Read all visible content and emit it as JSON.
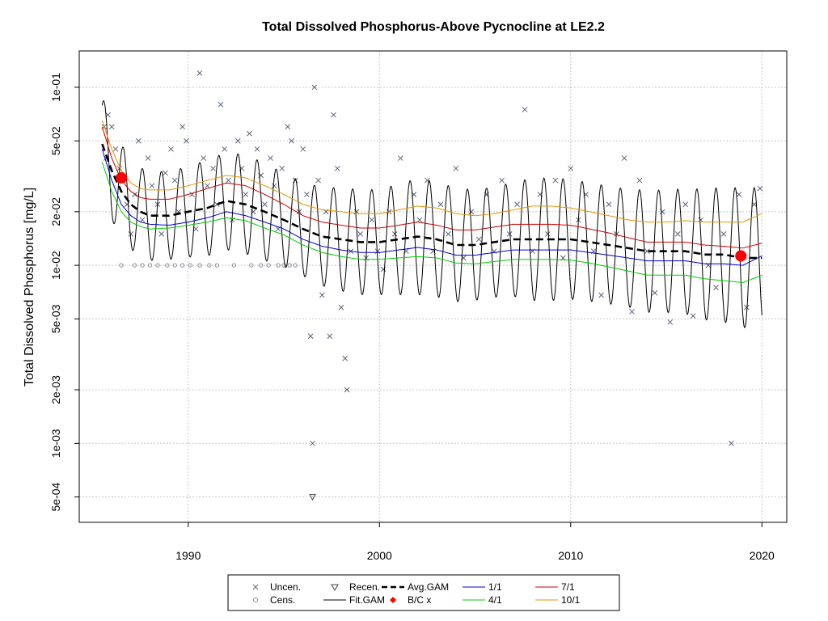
{
  "chart_data": {
    "type": "line",
    "title": "Total Dissolved Phosphorus-Above Pycnocline at LE2.2",
    "ylabel": "Total Dissolved Phosphorus [mg/L]",
    "xlabel": "",
    "y_scale": "log",
    "xlim": [
      1984.3,
      2021.3
    ],
    "ylim": [
      0.00036,
      0.16
    ],
    "x_ticks": [
      1990,
      2000,
      2010,
      2020
    ],
    "x_tick_labels": [
      "1990",
      "2000",
      "2010",
      "2020"
    ],
    "y_ticks": [
      0.0005,
      0.001,
      0.002,
      0.005,
      0.01,
      0.02,
      0.05,
      0.1
    ],
    "y_tick_labels": [
      "5e-04",
      "1e-03",
      "2e-03",
      "5e-03",
      "1e-02",
      "2e-02",
      "5e-02",
      "1e-01"
    ],
    "grid": true,
    "legend_position": "bottom",
    "legend": [
      {
        "label": "Uncen.",
        "symbol": "x"
      },
      {
        "label": "Recen.",
        "symbol": "triangle-down"
      },
      {
        "label": "Avg.GAM",
        "symbol": "dashed-line"
      },
      {
        "label": "1/1",
        "symbol": "line"
      },
      {
        "label": "7/1",
        "symbol": "line"
      },
      {
        "label": "Cens.",
        "symbol": "circle"
      },
      {
        "label": "Fit.GAM",
        "symbol": "line"
      },
      {
        "label": "B/C x",
        "symbol": "filled-diamond"
      },
      {
        "label": "4/1",
        "symbol": "line"
      },
      {
        "label": "10/1",
        "symbol": "line"
      }
    ],
    "colors": {
      "avg_gam": "#000000",
      "fit_gam": "#000000",
      "jan1": "#0000cd",
      "apr1": "#00cd00",
      "jul1": "#cd0000",
      "oct1": "#e69500",
      "bc_points": "#ff0000",
      "observations": "#5a6478"
    },
    "series": [
      {
        "name": "Avg.GAM",
        "x": [
          1985.5,
          1986,
          1986.5,
          1987,
          1987.5,
          1988,
          1989,
          1990,
          1991,
          1992,
          1993,
          1994,
          1995,
          1996,
          1997,
          1998,
          1999,
          2000,
          2001,
          2002,
          2003,
          2004,
          2005,
          2006,
          2007,
          2008,
          2009,
          2010,
          2011,
          2012,
          2013,
          2014,
          2015,
          2016,
          2017,
          2018,
          2019,
          2020
        ],
        "y": [
          0.048,
          0.034,
          0.026,
          0.022,
          0.02,
          0.019,
          0.019,
          0.02,
          0.021,
          0.023,
          0.022,
          0.02,
          0.018,
          0.016,
          0.0145,
          0.014,
          0.0135,
          0.0135,
          0.014,
          0.0145,
          0.014,
          0.013,
          0.013,
          0.0135,
          0.014,
          0.014,
          0.014,
          0.014,
          0.0135,
          0.013,
          0.0125,
          0.012,
          0.012,
          0.012,
          0.0115,
          0.0115,
          0.011,
          0.011
        ]
      },
      {
        "name": "1/1",
        "x": [
          1985.5,
          1986,
          1986.5,
          1987,
          1987.5,
          1988,
          1989,
          1990,
          1991,
          1992,
          1993,
          1994,
          1995,
          1996,
          1997,
          1998,
          1999,
          2000,
          2001,
          2002,
          2003,
          2004,
          2005,
          2006,
          2007,
          2008,
          2009,
          2010,
          2011,
          2012,
          2013,
          2014,
          2015,
          2016,
          2017,
          2018,
          2019,
          2020
        ],
        "y": [
          0.045,
          0.03,
          0.022,
          0.019,
          0.0175,
          0.017,
          0.0168,
          0.0175,
          0.0185,
          0.02,
          0.019,
          0.0175,
          0.016,
          0.014,
          0.0128,
          0.0122,
          0.0118,
          0.0118,
          0.0122,
          0.0126,
          0.0122,
          0.0114,
          0.0114,
          0.0118,
          0.0122,
          0.0122,
          0.0122,
          0.0122,
          0.0118,
          0.0114,
          0.011,
          0.0106,
          0.0106,
          0.0106,
          0.0102,
          0.0102,
          0.01,
          0.0113
        ]
      },
      {
        "name": "4/1",
        "x": [
          1985.5,
          1986,
          1986.5,
          1987,
          1987.5,
          1988,
          1989,
          1990,
          1991,
          1992,
          1993,
          1994,
          1995,
          1996,
          1997,
          1998,
          1999,
          2000,
          2001,
          2002,
          2003,
          2004,
          2005,
          2006,
          2007,
          2008,
          2009,
          2010,
          2011,
          2012,
          2013,
          2014,
          2015,
          2016,
          2017,
          2018,
          2019,
          2020
        ],
        "y": [
          0.038,
          0.026,
          0.02,
          0.0175,
          0.0165,
          0.016,
          0.0162,
          0.0168,
          0.0175,
          0.0185,
          0.0178,
          0.0162,
          0.0148,
          0.013,
          0.0118,
          0.0112,
          0.0108,
          0.0108,
          0.011,
          0.0112,
          0.011,
          0.0103,
          0.0102,
          0.0105,
          0.0108,
          0.0108,
          0.0108,
          0.0107,
          0.0103,
          0.0098,
          0.0093,
          0.0088,
          0.0088,
          0.0088,
          0.0084,
          0.0082,
          0.008,
          0.0088
        ]
      },
      {
        "name": "7/1",
        "x": [
          1985.5,
          1986,
          1986.5,
          1987,
          1987.5,
          1988,
          1989,
          1990,
          1991,
          1992,
          1993,
          1994,
          1995,
          1996,
          1997,
          1998,
          1999,
          2000,
          2001,
          2002,
          2003,
          2004,
          2005,
          2006,
          2007,
          2008,
          2009,
          2010,
          2011,
          2012,
          2013,
          2014,
          2015,
          2016,
          2017,
          2018,
          2019,
          2020
        ],
        "y": [
          0.06,
          0.04,
          0.03,
          0.026,
          0.024,
          0.0235,
          0.0235,
          0.025,
          0.027,
          0.029,
          0.028,
          0.025,
          0.022,
          0.019,
          0.0175,
          0.0168,
          0.0162,
          0.0162,
          0.0168,
          0.0175,
          0.0168,
          0.0158,
          0.0158,
          0.0164,
          0.017,
          0.017,
          0.017,
          0.0168,
          0.016,
          0.0152,
          0.0143,
          0.0135,
          0.0135,
          0.0135,
          0.013,
          0.0128,
          0.0125,
          0.0133
        ]
      },
      {
        "name": "10/1",
        "x": [
          1985.5,
          1986,
          1986.5,
          1987,
          1987.5,
          1988,
          1989,
          1990,
          1991,
          1992,
          1993,
          1994,
          1995,
          1996,
          1997,
          1998,
          1999,
          2000,
          2001,
          2002,
          2003,
          2004,
          2005,
          2006,
          2007,
          2008,
          2009,
          2010,
          2011,
          2012,
          2013,
          2014,
          2015,
          2016,
          2017,
          2018,
          2019,
          2020
        ],
        "y": [
          0.065,
          0.045,
          0.034,
          0.029,
          0.027,
          0.0265,
          0.0265,
          0.028,
          0.03,
          0.032,
          0.031,
          0.028,
          0.025,
          0.022,
          0.0205,
          0.02,
          0.0195,
          0.0195,
          0.0205,
          0.0215,
          0.021,
          0.0195,
          0.019,
          0.0195,
          0.0205,
          0.0215,
          0.0215,
          0.021,
          0.02,
          0.019,
          0.018,
          0.0175,
          0.0175,
          0.0178,
          0.0175,
          0.0175,
          0.0175,
          0.0195
        ]
      },
      {
        "name": "B/C x",
        "x": [
          1986.5,
          2018.9
        ],
        "y": [
          0.031,
          0.0113
        ]
      }
    ],
    "uncensored_points": [
      [
        1985.6,
        0.06
      ],
      [
        1985.8,
        0.07
      ],
      [
        1985.7,
        0.04
      ],
      [
        1986.0,
        0.06
      ],
      [
        1986.2,
        0.045
      ],
      [
        1986.4,
        0.035
      ],
      [
        1986.6,
        0.03
      ],
      [
        1986.8,
        0.022
      ],
      [
        1987.0,
        0.015
      ],
      [
        1987.2,
        0.025
      ],
      [
        1987.4,
        0.05
      ],
      [
        1987.6,
        0.018
      ],
      [
        1987.9,
        0.04
      ],
      [
        1988.1,
        0.028
      ],
      [
        1988.4,
        0.022
      ],
      [
        1988.6,
        0.015
      ],
      [
        1988.8,
        0.033
      ],
      [
        1989.1,
        0.045
      ],
      [
        1989.3,
        0.03
      ],
      [
        1989.5,
        0.02
      ],
      [
        1989.7,
        0.06
      ],
      [
        1989.9,
        0.05
      ],
      [
        1990.2,
        0.025
      ],
      [
        1990.4,
        0.016
      ],
      [
        1990.6,
        0.12
      ],
      [
        1990.8,
        0.04
      ],
      [
        1991.0,
        0.028
      ],
      [
        1991.3,
        0.035
      ],
      [
        1991.5,
        0.022
      ],
      [
        1991.7,
        0.08
      ],
      [
        1991.9,
        0.045
      ],
      [
        1992.1,
        0.03
      ],
      [
        1992.3,
        0.018
      ],
      [
        1992.6,
        0.05
      ],
      [
        1992.8,
        0.035
      ],
      [
        1993.0,
        0.025
      ],
      [
        1993.2,
        0.055
      ],
      [
        1993.4,
        0.02
      ],
      [
        1993.6,
        0.045
      ],
      [
        1993.8,
        0.032
      ],
      [
        1994.0,
        0.022
      ],
      [
        1994.3,
        0.04
      ],
      [
        1994.5,
        0.028
      ],
      [
        1994.7,
        0.016
      ],
      [
        1994.9,
        0.035
      ],
      [
        1995.2,
        0.06
      ],
      [
        1995.4,
        0.05
      ],
      [
        1995.6,
        0.03
      ],
      [
        1995.8,
        0.02
      ],
      [
        1996.0,
        0.045
      ],
      [
        1996.2,
        0.025
      ],
      [
        1996.4,
        0.004
      ],
      [
        1996.5,
        0.001
      ],
      [
        1996.6,
        0.1
      ],
      [
        1996.8,
        0.03
      ],
      [
        1997.0,
        0.0068
      ],
      [
        1997.2,
        0.02
      ],
      [
        1997.4,
        0.004
      ],
      [
        1997.6,
        0.07
      ],
      [
        1997.8,
        0.035
      ],
      [
        1998.0,
        0.0058
      ],
      [
        1998.2,
        0.003
      ],
      [
        1998.3,
        0.002
      ],
      [
        1998.5,
        0.012
      ],
      [
        1998.8,
        0.02
      ],
      [
        1999.0,
        0.015
      ],
      [
        1999.3,
        0.011
      ],
      [
        1999.6,
        0.018
      ],
      [
        1999.9,
        0.012
      ],
      [
        2000.2,
        0.0095
      ],
      [
        2000.5,
        0.02
      ],
      [
        2000.8,
        0.015
      ],
      [
        2001.1,
        0.04
      ],
      [
        2001.4,
        0.012
      ],
      [
        2001.8,
        0.025
      ],
      [
        2002.1,
        0.018
      ],
      [
        2002.5,
        0.03
      ],
      [
        2002.8,
        0.012
      ],
      [
        2003.2,
        0.022
      ],
      [
        2003.6,
        0.015
      ],
      [
        2004.0,
        0.035
      ],
      [
        2004.4,
        0.011
      ],
      [
        2004.8,
        0.02
      ],
      [
        2005.2,
        0.014
      ],
      [
        2005.6,
        0.025
      ],
      [
        2006.0,
        0.012
      ],
      [
        2006.4,
        0.03
      ],
      [
        2006.8,
        0.015
      ],
      [
        2007.2,
        0.022
      ],
      [
        2007.6,
        0.075
      ],
      [
        2008.0,
        0.012
      ],
      [
        2008.4,
        0.025
      ],
      [
        2008.8,
        0.015
      ],
      [
        2009.2,
        0.03
      ],
      [
        2009.6,
        0.011
      ],
      [
        2010.0,
        0.035
      ],
      [
        2010.4,
        0.018
      ],
      [
        2010.8,
        0.025
      ],
      [
        2011.2,
        0.012
      ],
      [
        2011.6,
        0.0068
      ],
      [
        2012.0,
        0.022
      ],
      [
        2012.4,
        0.015
      ],
      [
        2012.8,
        0.04
      ],
      [
        2013.2,
        0.0055
      ],
      [
        2013.6,
        0.03
      ],
      [
        2014.0,
        0.012
      ],
      [
        2014.4,
        0.007
      ],
      [
        2014.8,
        0.02
      ],
      [
        2015.2,
        0.0048
      ],
      [
        2015.6,
        0.015
      ],
      [
        2016.0,
        0.022
      ],
      [
        2016.4,
        0.0052
      ],
      [
        2016.8,
        0.018
      ],
      [
        2017.2,
        0.01
      ],
      [
        2017.6,
        0.0075
      ],
      [
        2018.0,
        0.015
      ],
      [
        2018.4,
        0.001
      ],
      [
        2018.8,
        0.025
      ],
      [
        2019.2,
        0.0058
      ],
      [
        2019.6,
        0.022
      ],
      [
        2019.9,
        0.027
      ]
    ],
    "censored_points": [
      [
        1986.5,
        0.01
      ],
      [
        1987.2,
        0.01
      ],
      [
        1987.6,
        0.01
      ],
      [
        1988.0,
        0.01
      ],
      [
        1988.4,
        0.01
      ],
      [
        1988.9,
        0.01
      ],
      [
        1989.3,
        0.01
      ],
      [
        1989.7,
        0.01
      ],
      [
        1990.1,
        0.01
      ],
      [
        1990.6,
        0.01
      ],
      [
        1991.1,
        0.01
      ],
      [
        1991.5,
        0.01
      ],
      [
        1992.4,
        0.01
      ],
      [
        1993.3,
        0.01
      ],
      [
        1993.8,
        0.01
      ],
      [
        1994.2,
        0.01
      ],
      [
        1994.7,
        0.01
      ],
      [
        1995.0,
        0.01
      ],
      [
        1995.3,
        0.01
      ],
      [
        1995.6,
        0.01
      ]
    ],
    "recensored_points": [
      [
        1996.5,
        0.0005
      ]
    ]
  }
}
